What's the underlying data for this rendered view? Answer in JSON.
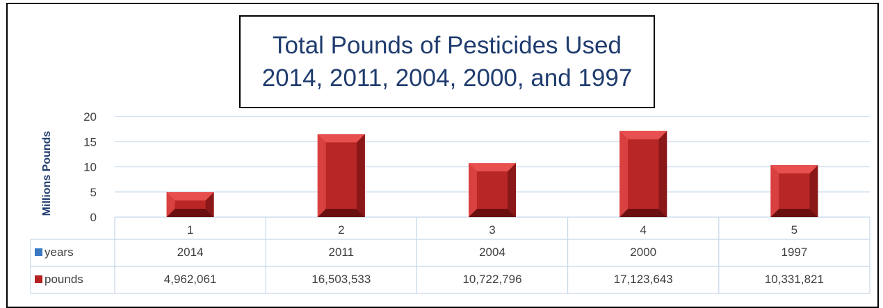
{
  "title_lines": [
    "Total Pounds of Pesticides Used",
    "2014, 2011, 2004, 2000, and 1997"
  ],
  "colors": {
    "bar_front": "#cc2e2e",
    "bar_top": "#e85050",
    "bar_side": "#8b1818",
    "bar_dark": "#6b1010",
    "grid": "#c5d8ea",
    "title": "#1f3c6e",
    "years_marker": "#3a78c3",
    "pounds_marker": "#b52020"
  },
  "chart_data": {
    "type": "bar",
    "title": "Total Pounds of Pesticides Used 2014, 2011, 2004, 2000, and 1997",
    "ylabel": "Millions Pounds",
    "xlabel": "",
    "categories": [
      "1",
      "2",
      "3",
      "4",
      "5"
    ],
    "ylim": [
      0,
      20
    ],
    "yticks": [
      "0",
      "5",
      "10",
      "15",
      "20"
    ],
    "grid": true,
    "series": [
      {
        "name": "years",
        "values": [
          2014,
          2011,
          2004,
          2000,
          1997
        ],
        "plotted": false
      },
      {
        "name": "pounds",
        "values": [
          4.962061,
          16.503533,
          10.722796,
          17.123643,
          10.331821
        ],
        "plotted": true
      }
    ],
    "data_table": {
      "rows": [
        {
          "label": "years",
          "cells": [
            "2014",
            "2011",
            "2004",
            "2000",
            "1997"
          ]
        },
        {
          "label": "pounds",
          "cells": [
            "4,962,061",
            "16,503,533",
            "10,722,796",
            "17,123,643",
            "10,331,821"
          ]
        }
      ]
    }
  }
}
